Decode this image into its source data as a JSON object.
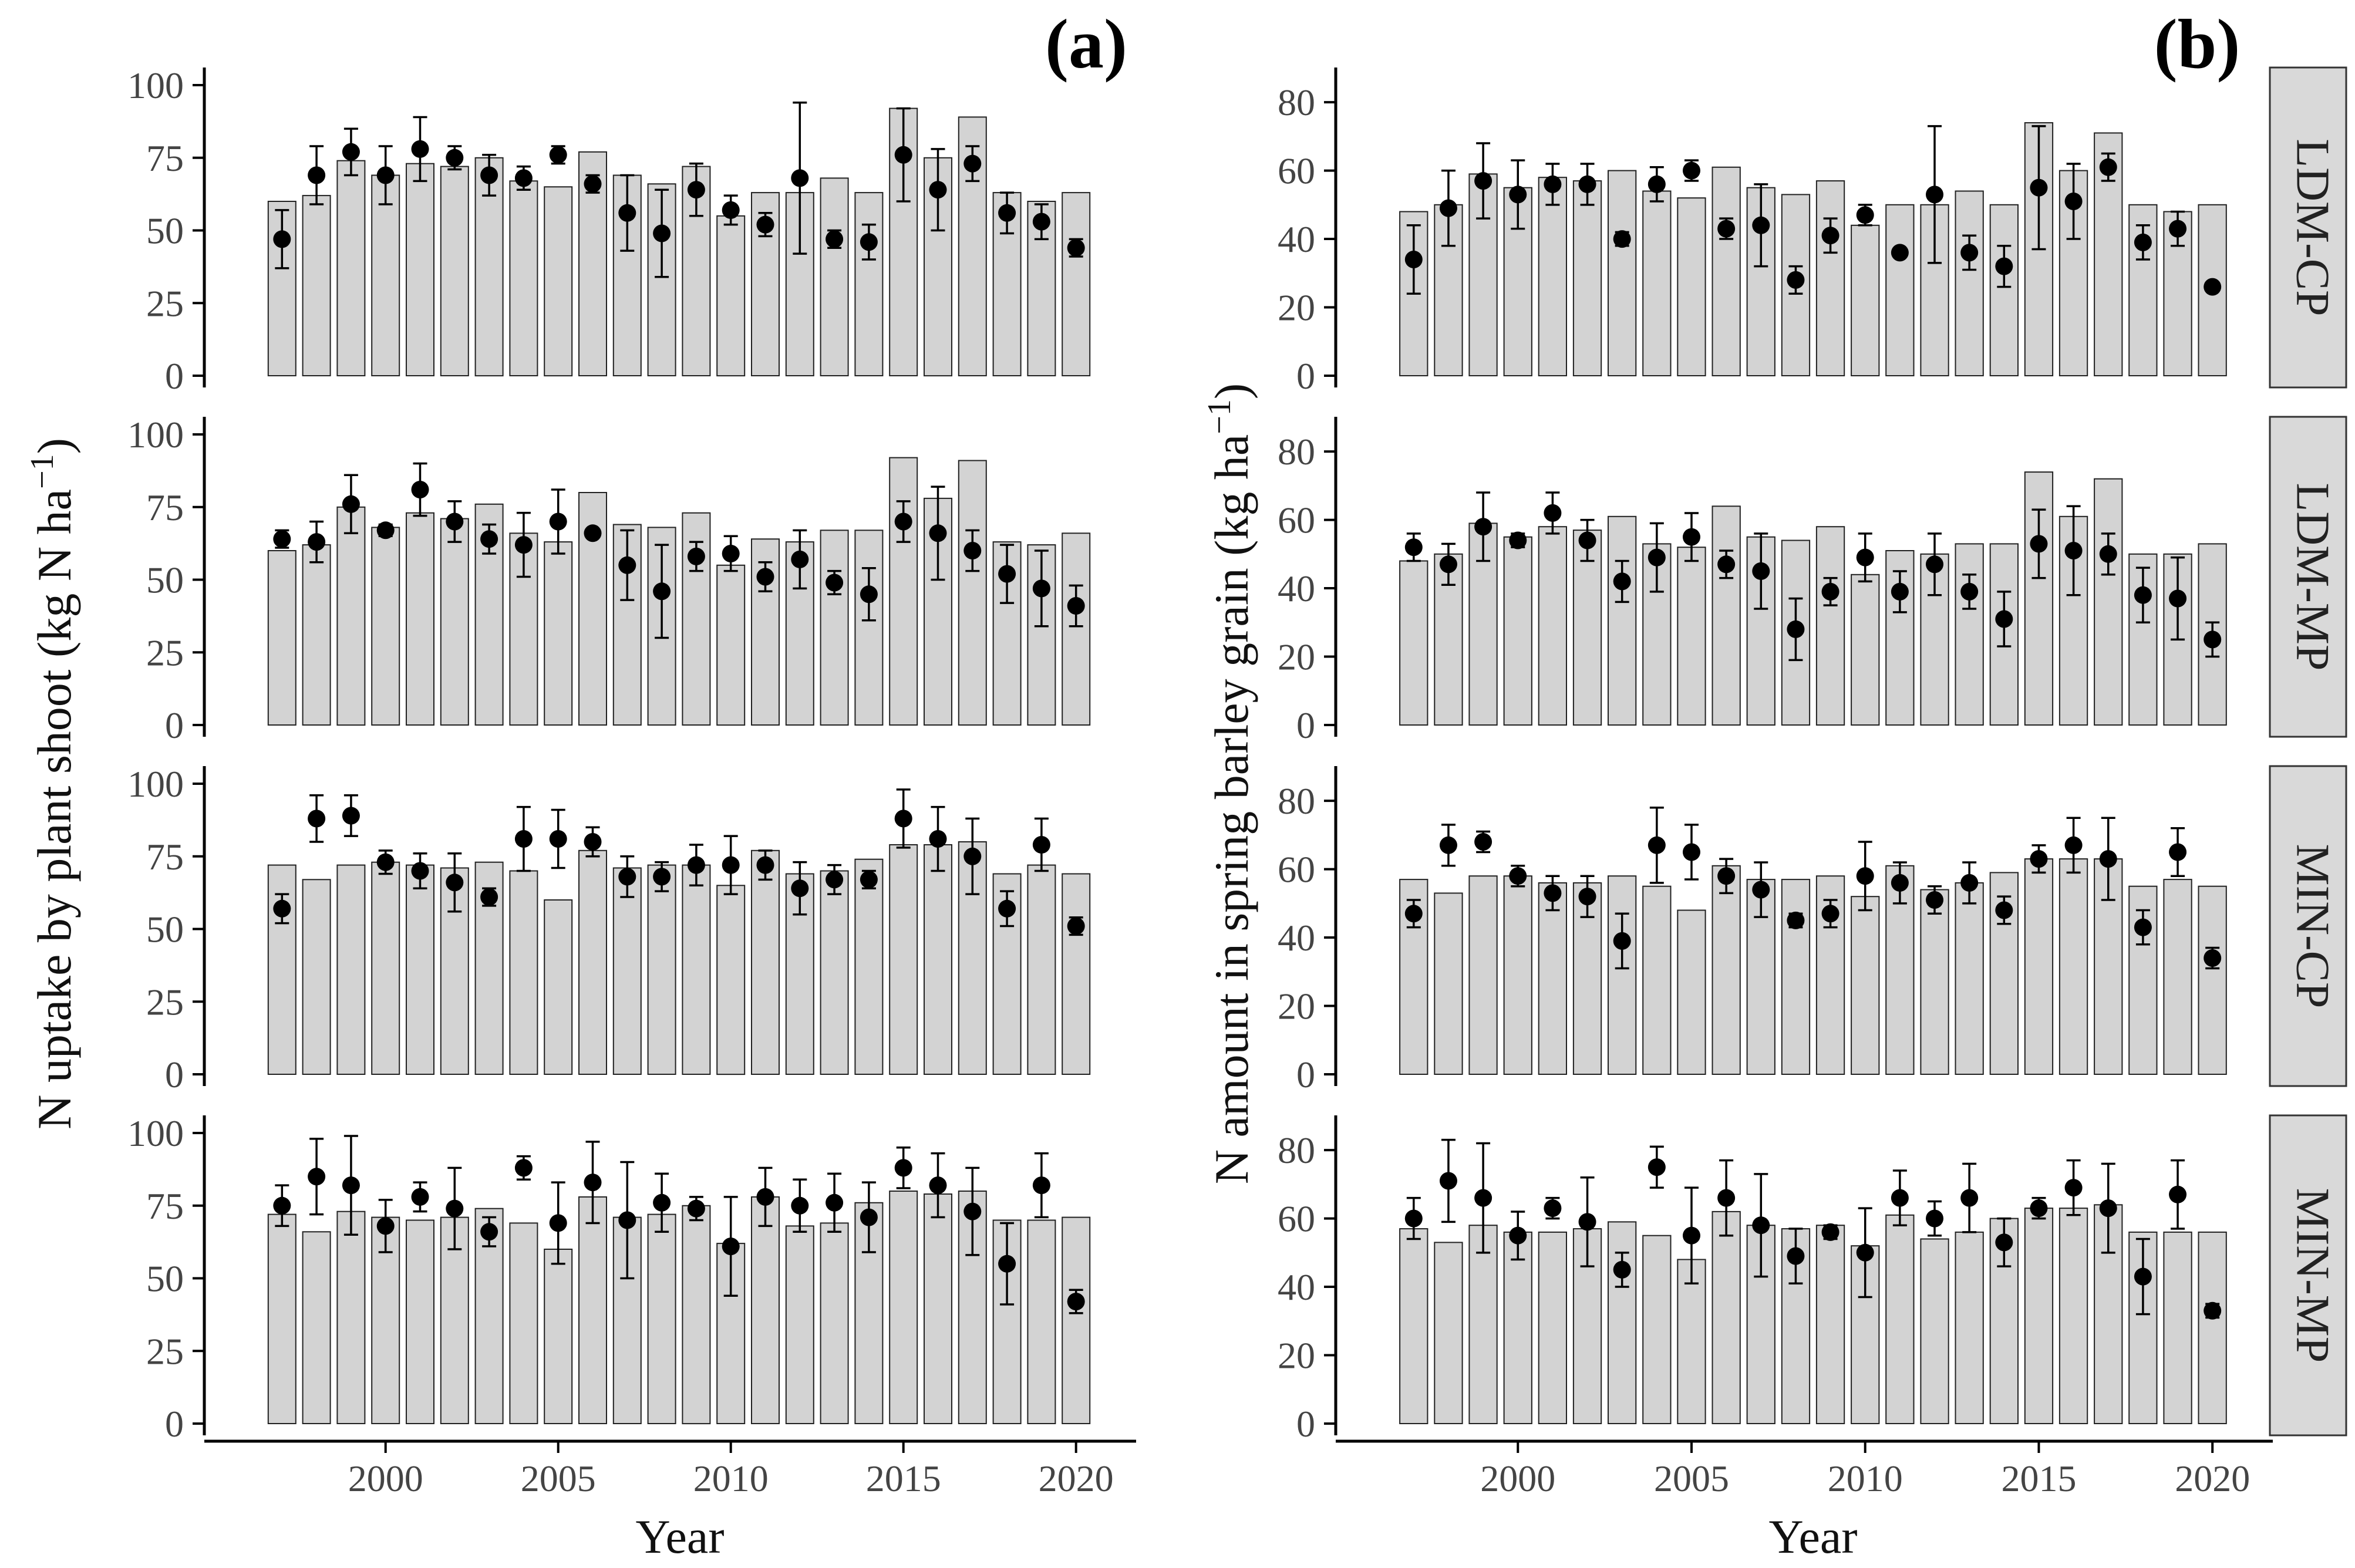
{
  "figure": {
    "panels": [
      "(a)",
      "(b)"
    ],
    "strips": [
      "LDM-CP",
      "LDM-MP",
      "MIN-CP",
      "MIN-MP"
    ]
  },
  "colors": {
    "bar_fill": "#d3d3d3",
    "bar_stroke": "#222222",
    "point": "#000000",
    "axis": "#000000",
    "strip_fill": "#d9d9d9",
    "strip_stroke": "#333333"
  },
  "chart_data": [
    {
      "type": "bar",
      "panel_label": "(a)",
      "title": "",
      "xlabel": "Year",
      "ylabel": "N uptake by plant shoot (kg N ha",
      "ylabel_sup": "−1",
      "ylabel_close": ")",
      "x": [
        1997,
        1998,
        1999,
        2000,
        2001,
        2002,
        2003,
        2004,
        2005,
        2006,
        2007,
        2008,
        2009,
        2010,
        2011,
        2012,
        2013,
        2014,
        2015,
        2016,
        2017,
        2018,
        2019,
        2020
      ],
      "xlim": [
        1995.6,
        2021.4
      ],
      "xticks": [
        2000,
        2005,
        2010,
        2015,
        2020
      ],
      "ylim": [
        0,
        100
      ],
      "yticks": [
        0,
        25,
        50,
        75,
        100
      ],
      "legend": "none",
      "facets": [
        {
          "name": "LDM-CP",
          "bars": [
            60,
            62,
            74,
            69,
            73,
            72,
            75,
            67,
            65,
            77,
            69,
            66,
            72,
            55,
            63,
            63,
            68,
            63,
            92,
            75,
            89,
            63,
            60,
            63
          ],
          "points": [
            47,
            69,
            77,
            69,
            78,
            75,
            69,
            68,
            76,
            66,
            56,
            49,
            64,
            57,
            52,
            68,
            47,
            46,
            76,
            64,
            73,
            56,
            53,
            44
          ],
          "err": [
            10,
            10,
            8,
            10,
            11,
            4,
            7,
            4,
            3,
            3,
            13,
            15,
            9,
            5,
            4,
            26,
            3,
            6,
            16,
            14,
            6,
            7,
            6,
            3
          ]
        },
        {
          "name": "LDM-MP",
          "bars": [
            60,
            62,
            75,
            68,
            73,
            71,
            76,
            66,
            63,
            80,
            69,
            68,
            73,
            55,
            64,
            63,
            67,
            67,
            92,
            78,
            91,
            63,
            62,
            66
          ],
          "points": [
            64,
            63,
            76,
            67,
            81,
            70,
            64,
            62,
            70,
            66,
            55,
            46,
            58,
            59,
            51,
            57,
            49,
            45,
            70,
            66,
            60,
            52,
            47,
            41
          ],
          "err": [
            3,
            7,
            10,
            2,
            9,
            7,
            5,
            11,
            11,
            0,
            12,
            16,
            5,
            6,
            5,
            10,
            4,
            9,
            7,
            16,
            7,
            10,
            13,
            7
          ]
        },
        {
          "name": "MIN-CP",
          "bars": [
            72,
            67,
            72,
            73,
            72,
            71,
            73,
            70,
            60,
            77,
            71,
            72,
            72,
            65,
            77,
            69,
            70,
            74,
            79,
            79,
            80,
            69,
            72,
            69
          ],
          "points": [
            57,
            88,
            89,
            73,
            70,
            66,
            61,
            81,
            81,
            80,
            68,
            68,
            72,
            72,
            72,
            64,
            67,
            67,
            88,
            81,
            75,
            57,
            79,
            51
          ],
          "err": [
            5,
            8,
            7,
            4,
            6,
            10,
            3,
            11,
            10,
            5,
            7,
            5,
            7,
            10,
            5,
            9,
            5,
            3,
            10,
            11,
            13,
            6,
            9,
            3
          ]
        },
        {
          "name": "MIN-MP",
          "bars": [
            72,
            66,
            73,
            71,
            70,
            71,
            74,
            69,
            60,
            78,
            71,
            72,
            75,
            62,
            78,
            68,
            69,
            76,
            80,
            79,
            80,
            70,
            70,
            71
          ],
          "points": [
            75,
            85,
            82,
            68,
            78,
            74,
            66,
            88,
            69,
            83,
            70,
            76,
            74,
            61,
            78,
            75,
            76,
            71,
            88,
            82,
            73,
            55,
            82,
            42
          ],
          "err": [
            7,
            13,
            17,
            9,
            5,
            14,
            5,
            4,
            14,
            14,
            20,
            10,
            4,
            17,
            10,
            9,
            10,
            12,
            7,
            11,
            15,
            14,
            11,
            4
          ]
        }
      ]
    },
    {
      "type": "bar",
      "panel_label": "(b)",
      "title": "",
      "xlabel": "Year",
      "ylabel": "N amount in spring barley grain (kg ha",
      "ylabel_sup": "−1",
      "ylabel_close": ")",
      "x": [
        1997,
        1998,
        1999,
        2000,
        2001,
        2002,
        2003,
        2004,
        2005,
        2006,
        2007,
        2008,
        2009,
        2010,
        2011,
        2012,
        2013,
        2014,
        2015,
        2016,
        2017,
        2018,
        2019,
        2020
      ],
      "xlim": [
        1995.6,
        2021.4
      ],
      "xticks": [
        2000,
        2005,
        2010,
        2015,
        2020
      ],
      "ylim": [
        0,
        85
      ],
      "yticks": [
        0,
        20,
        40,
        60,
        80
      ],
      "legend": "none",
      "facets": [
        {
          "name": "LDM-CP",
          "bars": [
            48,
            50,
            59,
            55,
            58,
            57,
            60,
            54,
            52,
            61,
            55,
            53,
            57,
            44,
            50,
            50,
            54,
            50,
            74,
            60,
            71,
            50,
            48,
            50
          ],
          "points": [
            34,
            49,
            57,
            53,
            56,
            56,
            40,
            56,
            60,
            43,
            44,
            28,
            41,
            47,
            36,
            53,
            36,
            32,
            55,
            51,
            61,
            39,
            43,
            26
          ],
          "err": [
            10,
            11,
            11,
            10,
            6,
            6,
            2,
            5,
            3,
            3,
            12,
            4,
            5,
            3,
            1,
            20,
            5,
            6,
            18,
            11,
            4,
            5,
            5,
            1
          ],
          "strip_label": "LDM-CP"
        },
        {
          "name": "LDM-MP",
          "bars": [
            48,
            50,
            59,
            55,
            58,
            57,
            61,
            53,
            52,
            64,
            55,
            54,
            58,
            44,
            51,
            50,
            53,
            53,
            74,
            61,
            72,
            50,
            50,
            53
          ],
          "points": [
            52,
            47,
            58,
            54,
            62,
            54,
            42,
            49,
            55,
            47,
            45,
            28,
            39,
            49,
            39,
            47,
            39,
            31,
            53,
            51,
            50,
            38,
            37,
            25
          ],
          "err": [
            4,
            6,
            10,
            2,
            6,
            6,
            6,
            10,
            7,
            4,
            11,
            9,
            4,
            7,
            6,
            9,
            5,
            8,
            10,
            13,
            6,
            8,
            12,
            5
          ],
          "strip_label": "LDM-MP"
        },
        {
          "name": "MIN-CP",
          "bars": [
            57,
            53,
            58,
            58,
            56,
            56,
            58,
            55,
            48,
            61,
            57,
            57,
            58,
            52,
            61,
            54,
            56,
            59,
            63,
            63,
            63,
            55,
            57,
            55
          ],
          "points": [
            47,
            67,
            68,
            58,
            53,
            52,
            39,
            67,
            65,
            58,
            54,
            45,
            47,
            58,
            56,
            51,
            56,
            48,
            63,
            67,
            63,
            43,
            65,
            34
          ],
          "err": [
            4,
            6,
            3,
            3,
            5,
            6,
            8,
            11,
            8,
            5,
            8,
            2,
            4,
            10,
            6,
            4,
            6,
            4,
            4,
            8,
            12,
            5,
            7,
            3
          ],
          "strip_label": "MIN-CP"
        },
        {
          "name": "MIN-MP",
          "bars": [
            57,
            53,
            58,
            56,
            56,
            57,
            59,
            55,
            48,
            62,
            58,
            57,
            58,
            52,
            61,
            54,
            56,
            60,
            63,
            63,
            64,
            56,
            56,
            56
          ],
          "points": [
            60,
            71,
            66,
            55,
            63,
            59,
            45,
            75,
            55,
            66,
            58,
            49,
            56,
            50,
            66,
            60,
            66,
            53,
            63,
            69,
            63,
            43,
            67,
            33
          ],
          "err": [
            6,
            12,
            16,
            7,
            3,
            13,
            5,
            6,
            14,
            11,
            15,
            8,
            2,
            13,
            8,
            5,
            10,
            7,
            3,
            8,
            13,
            11,
            10,
            2
          ],
          "strip_label": "MIN-MP"
        }
      ]
    }
  ]
}
